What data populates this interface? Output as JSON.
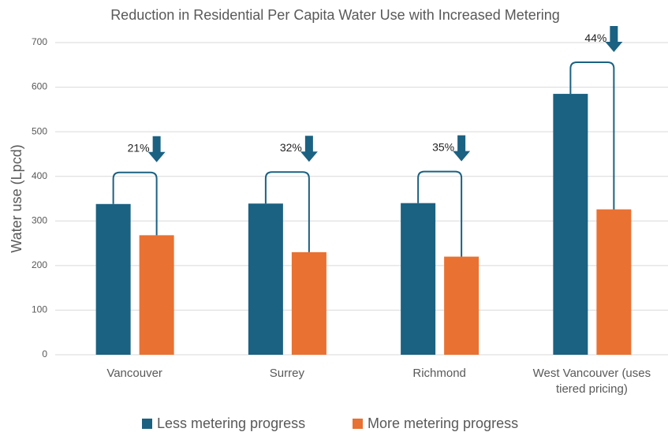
{
  "chart_data": {
    "type": "bar",
    "title": "Reduction in Residential Per Capita Water Use with Increased Metering",
    "y_label": "Water use (Lpcd)",
    "categories": [
      "Vancouver",
      "Surrey",
      "Richmond",
      "West Vancouver (uses tiered pricing)"
    ],
    "series": [
      {
        "name": "Less metering progress",
        "color": "#1b6182",
        "values": [
          338,
          339,
          340,
          585
        ]
      },
      {
        "name": "More metering progress",
        "color": "#e97132",
        "values": [
          268,
          230,
          220,
          326
        ]
      }
    ],
    "annotations": [
      "21%",
      "32%",
      "35%",
      "44%"
    ],
    "ylim": [
      0,
      700
    ],
    "yticks": [
      0,
      100,
      200,
      300,
      400,
      500,
      600,
      700
    ],
    "grid": true,
    "legend": "bottom"
  }
}
